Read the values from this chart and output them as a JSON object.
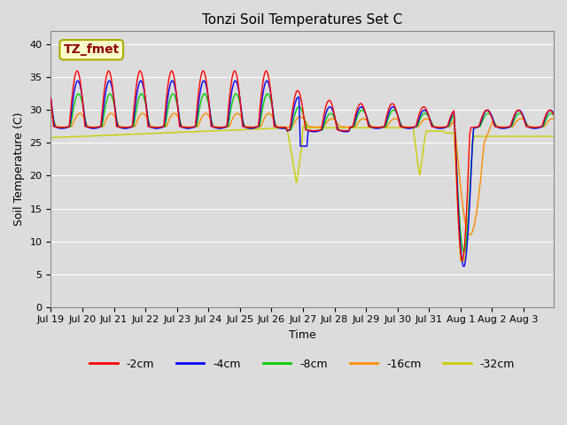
{
  "title": "Tonzi Soil Temperatures Set C",
  "xlabel": "Time",
  "ylabel": "Soil Temperature (C)",
  "annotation": "TZ_fmet",
  "annotation_color": "#8B0000",
  "annotation_bg": "#FFFFCC",
  "ylim": [
    0,
    42
  ],
  "yticks": [
    0,
    5,
    10,
    15,
    20,
    25,
    30,
    35,
    40
  ],
  "series_colors": {
    "-2cm": "#FF0000",
    "-4cm": "#0000FF",
    "-8cm": "#00CC00",
    "-16cm": "#FF8C00",
    "-32cm": "#CCCC00"
  },
  "legend_order": [
    "-2cm",
    "-4cm",
    "-8cm",
    "-16cm",
    "-32cm"
  ],
  "plot_bg_color": "#DCDCDC",
  "fig_bg_color": "#DCDCDC",
  "grid_color": "#FFFFFF",
  "tick_labels": [
    "Jul 19",
    "Jul 20",
    "Jul 21",
    "Jul 22",
    "Jul 23",
    "Jul 24",
    "Jul 25",
    "Jul 26",
    "Jul 27",
    "Jul 28",
    "Jul 29",
    "Jul 30",
    "Jul 31",
    "Aug 1",
    "Aug 2",
    "Aug 3"
  ]
}
